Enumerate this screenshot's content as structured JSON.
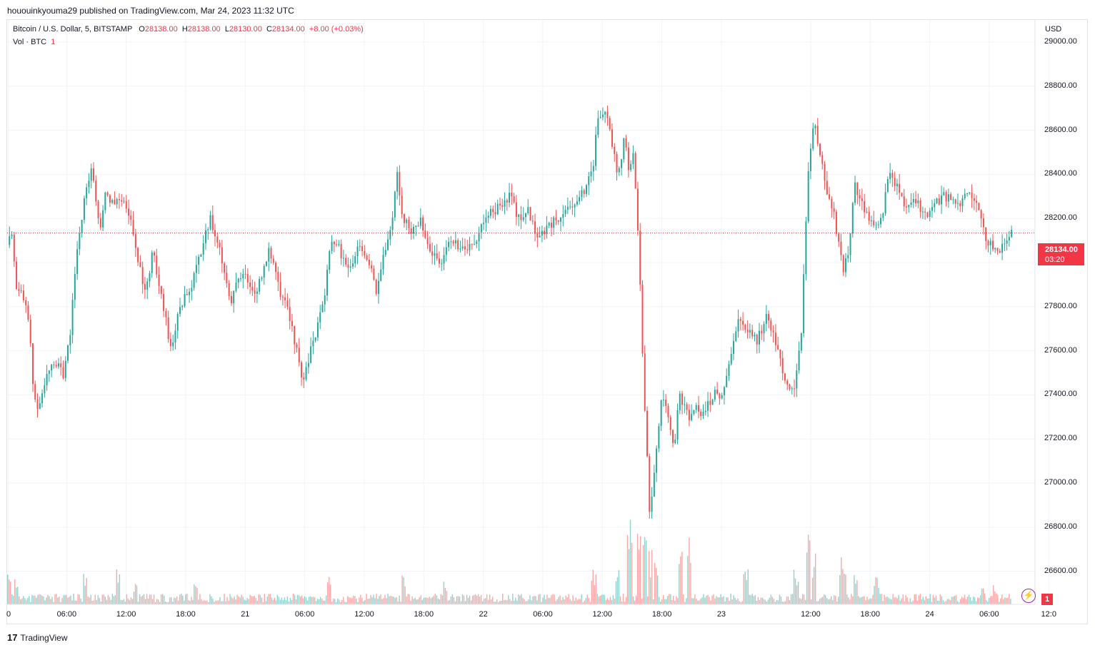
{
  "header": {
    "published": "hououinkyouma29 published on TradingView.com, Mar 24, 2023 11:32 UTC"
  },
  "legend": {
    "symbol": "Bitcoin / U.S. Dollar, 5, BITSTAMP",
    "o_label": "O",
    "o_val": "28138.00",
    "h_label": "H",
    "h_val": "28138.00",
    "l_label": "L",
    "l_val": "28130.00",
    "c_label": "C",
    "c_val": "28134.00",
    "change": "+8.00 (+0.03%)",
    "vol_label": "Vol · BTC",
    "vol_val": "1"
  },
  "price_axis": {
    "currency": "USD",
    "ticks": [
      "29000.00",
      "28800.00",
      "28600.00",
      "28400.00",
      "28200.00",
      "28000.00",
      "27800.00",
      "27600.00",
      "27400.00",
      "27200.00",
      "27000.00",
      "26800.00",
      "26600.00"
    ]
  },
  "time_axis": {
    "ticks": [
      "0",
      "06:00",
      "12:00",
      "18:00",
      "21",
      "06:00",
      "12:00",
      "18:00",
      "22",
      "06:00",
      "12:00",
      "18:00",
      "23",
      "12:00",
      "18:00",
      "24",
      "06:00",
      "12:0"
    ]
  },
  "last_price": {
    "price": "28134.00",
    "countdown": "03:20"
  },
  "badges": {
    "bolt_icon": "lightning-icon",
    "count": "1"
  },
  "footer": {
    "brand": "TradingView",
    "logo": "17"
  },
  "colors": {
    "up": "#26a69a",
    "down": "#ef5350",
    "last": "#f23645"
  },
  "chart_data": {
    "type": "candlestick",
    "symbol": "BTCUSD",
    "exchange": "BITSTAMP",
    "interval": "5",
    "y_range": [
      26450,
      29100
    ],
    "grid": true,
    "last_close": 28134,
    "path": [
      [
        0,
        28080
      ],
      [
        0.15,
        28120
      ],
      [
        0.3,
        27900
      ],
      [
        0.55,
        27850
      ],
      [
        0.75,
        27700
      ],
      [
        0.9,
        27400
      ],
      [
        1.05,
        27300
      ],
      [
        1.3,
        27500
      ],
      [
        1.6,
        27550
      ],
      [
        1.9,
        27480
      ],
      [
        2.1,
        27650
      ],
      [
        2.3,
        28000
      ],
      [
        2.6,
        28300
      ],
      [
        2.85,
        28450
      ],
      [
        3.1,
        28150
      ],
      [
        3.3,
        28300
      ],
      [
        3.6,
        28280
      ],
      [
        4.0,
        28250
      ],
      [
        4.3,
        28100
      ],
      [
        4.6,
        27850
      ],
      [
        4.9,
        28050
      ],
      [
        5.2,
        27850
      ],
      [
        5.5,
        27600
      ],
      [
        5.8,
        27800
      ],
      [
        6.2,
        27900
      ],
      [
        6.5,
        28050
      ],
      [
        6.8,
        28200
      ],
      [
        7.1,
        28100
      ],
      [
        7.3,
        27950
      ],
      [
        7.5,
        27800
      ],
      [
        7.7,
        27900
      ],
      [
        8.0,
        27950
      ],
      [
        8.3,
        27850
      ],
      [
        8.6,
        27950
      ],
      [
        8.8,
        28050
      ],
      [
        9.1,
        27900
      ],
      [
        9.5,
        27750
      ],
      [
        9.8,
        27550
      ],
      [
        9.95,
        27450
      ],
      [
        10.2,
        27600
      ],
      [
        10.6,
        27800
      ],
      [
        10.9,
        28100
      ],
      [
        11.2,
        28050
      ],
      [
        11.5,
        27950
      ],
      [
        11.8,
        28100
      ],
      [
        12.2,
        28000
      ],
      [
        12.4,
        27850
      ],
      [
        12.6,
        28000
      ],
      [
        12.9,
        28150
      ],
      [
        13.1,
        28400
      ],
      [
        13.3,
        28200
      ],
      [
        13.6,
        28150
      ],
      [
        13.9,
        28200
      ],
      [
        14.2,
        28050
      ],
      [
        14.6,
        28000
      ],
      [
        14.9,
        28100
      ],
      [
        15.3,
        28050
      ],
      [
        15.7,
        28100
      ],
      [
        16.1,
        28200
      ],
      [
        16.5,
        28250
      ],
      [
        16.9,
        28300
      ],
      [
        17.2,
        28200
      ],
      [
        17.5,
        28250
      ],
      [
        17.8,
        28100
      ],
      [
        18.1,
        28150
      ],
      [
        18.5,
        28200
      ],
      [
        18.9,
        28250
      ],
      [
        19.2,
        28300
      ],
      [
        19.5,
        28350
      ],
      [
        19.7,
        28450
      ],
      [
        19.85,
        28650
      ],
      [
        20.1,
        28700
      ],
      [
        20.35,
        28500
      ],
      [
        20.55,
        28400
      ],
      [
        20.75,
        28600
      ],
      [
        20.9,
        28400
      ],
      [
        21.05,
        28500
      ],
      [
        21.2,
        28150
      ],
      [
        21.4,
        27400
      ],
      [
        21.6,
        26850
      ],
      [
        21.8,
        27150
      ],
      [
        22.0,
        27400
      ],
      [
        22.2,
        27300
      ],
      [
        22.4,
        27150
      ],
      [
        22.6,
        27400
      ],
      [
        22.9,
        27300
      ],
      [
        23.1,
        27350
      ],
      [
        23.4,
        27300
      ],
      [
        23.7,
        27400
      ],
      [
        24.0,
        27400
      ],
      [
        24.3,
        27550
      ],
      [
        24.6,
        27750
      ],
      [
        24.9,
        27700
      ],
      [
        25.2,
        27650
      ],
      [
        25.5,
        27750
      ],
      [
        25.8,
        27650
      ],
      [
        26.1,
        27500
      ],
      [
        26.3,
        27400
      ],
      [
        26.5,
        27450
      ],
      [
        26.7,
        27700
      ],
      [
        26.9,
        28400
      ],
      [
        27.1,
        28650
      ],
      [
        27.3,
        28500
      ],
      [
        27.5,
        28350
      ],
      [
        27.8,
        28200
      ],
      [
        28.1,
        27950
      ],
      [
        28.25,
        28050
      ],
      [
        28.5,
        28350
      ],
      [
        28.8,
        28250
      ],
      [
        29.1,
        28150
      ],
      [
        29.4,
        28200
      ],
      [
        29.6,
        28400
      ],
      [
        29.9,
        28350
      ],
      [
        30.2,
        28250
      ],
      [
        30.5,
        28300
      ],
      [
        30.8,
        28200
      ],
      [
        31.1,
        28250
      ],
      [
        31.4,
        28300
      ],
      [
        31.7,
        28300
      ],
      [
        32.0,
        28250
      ],
      [
        32.3,
        28350
      ],
      [
        32.6,
        28250
      ],
      [
        32.9,
        28100
      ],
      [
        33.2,
        28050
      ],
      [
        33.5,
        28080
      ],
      [
        33.75,
        28134
      ]
    ],
    "volume_spikes": [
      [
        0.05,
        40
      ],
      [
        0.3,
        35
      ],
      [
        2.6,
        45
      ],
      [
        3.7,
        50
      ],
      [
        4.3,
        35
      ],
      [
        6.3,
        30
      ],
      [
        10.8,
        35
      ],
      [
        13.3,
        40
      ],
      [
        14.7,
        30
      ],
      [
        19.7,
        45
      ],
      [
        20.5,
        45
      ],
      [
        20.9,
        120
      ],
      [
        21.2,
        95
      ],
      [
        21.4,
        110
      ],
      [
        21.6,
        75
      ],
      [
        21.8,
        60
      ],
      [
        22.6,
        80
      ],
      [
        22.9,
        100
      ],
      [
        24.8,
        45
      ],
      [
        26.5,
        45
      ],
      [
        26.9,
        95
      ],
      [
        27.1,
        70
      ],
      [
        28.0,
        60
      ],
      [
        28.1,
        55
      ],
      [
        28.5,
        40
      ],
      [
        29.2,
        35
      ],
      [
        32.8,
        30
      ],
      [
        33.2,
        25
      ]
    ],
    "x_scale": "time",
    "x_unit_label": "hours"
  }
}
